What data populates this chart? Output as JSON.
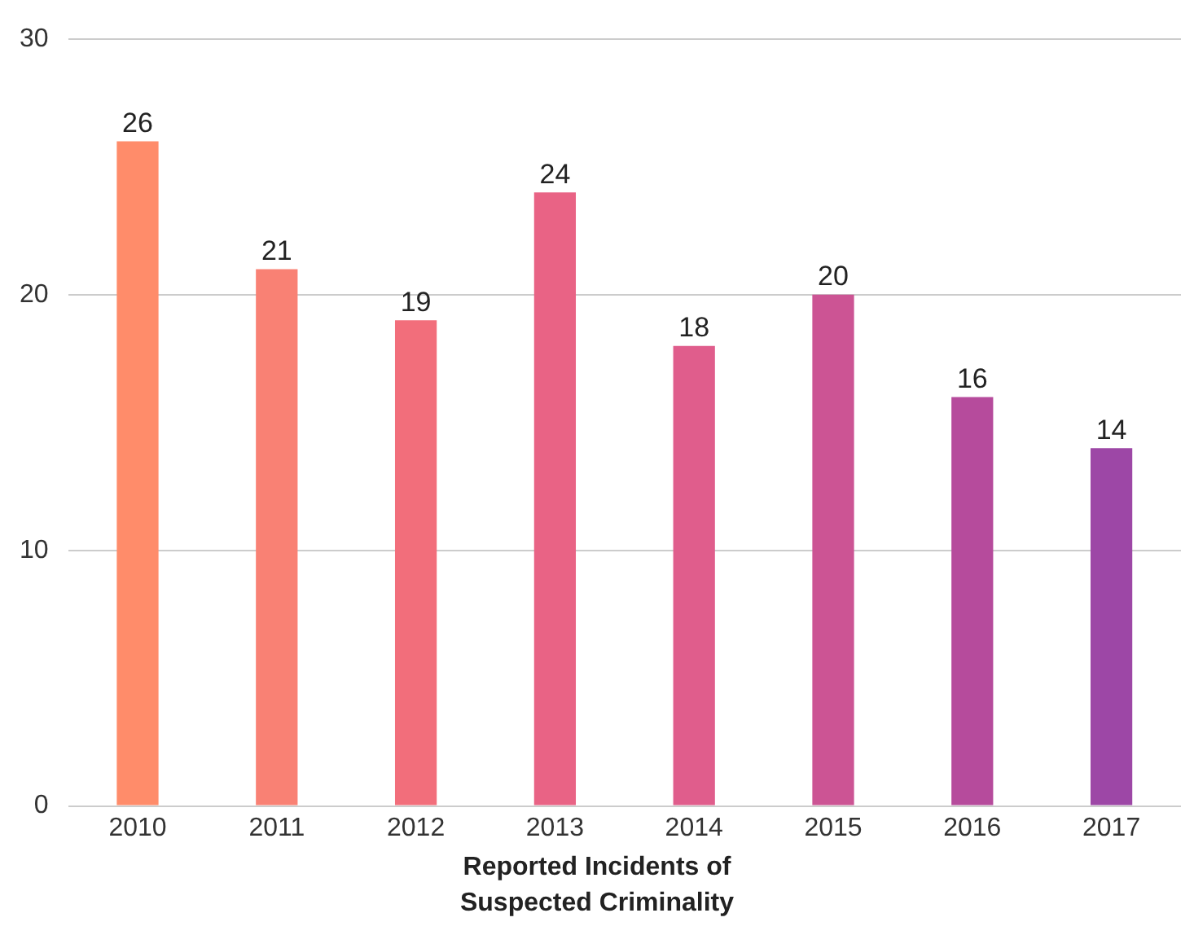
{
  "chart_data": {
    "type": "bar",
    "xlabel": "Reported Incidents of Suspected Criminality",
    "categories": [
      "2010",
      "2011",
      "2012",
      "2013",
      "2014",
      "2015",
      "2016",
      "2017"
    ],
    "values": [
      26,
      21,
      19,
      24,
      18,
      20,
      16,
      14
    ],
    "colors": [
      "#ff8c6a",
      "#f98174",
      "#f26e7b",
      "#e96385",
      "#e05d8c",
      "#cc5494",
      "#b64b9c",
      "#9d47a6"
    ],
    "ylim": [
      0,
      30
    ],
    "yticks": [
      0,
      10,
      20,
      30
    ],
    "grid": "y",
    "data_labels": true,
    "legend": false
  }
}
